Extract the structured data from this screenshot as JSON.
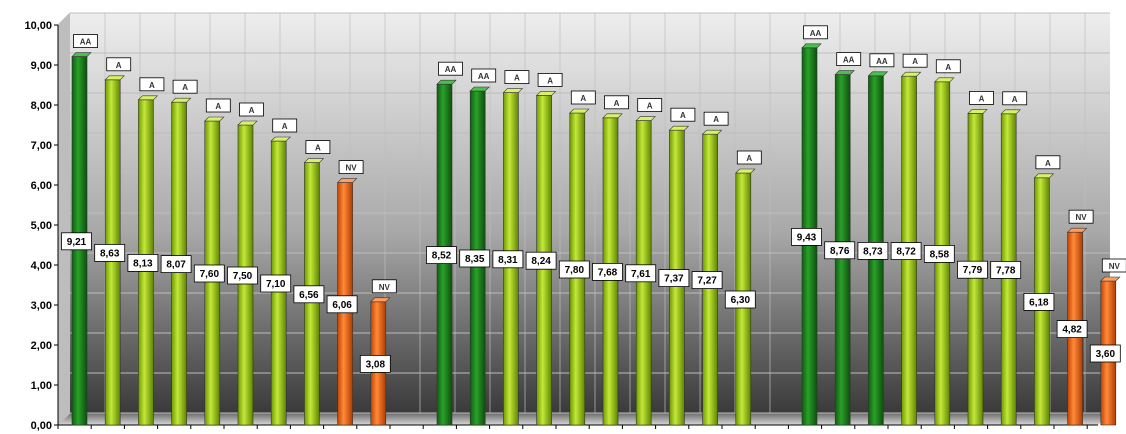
{
  "chart_data": {
    "type": "bar",
    "title": "",
    "xlabel": "",
    "ylabel": "",
    "ylim": [
      0,
      10
    ],
    "y_ticks": [
      "0,00",
      "1,00",
      "2,00",
      "3,00",
      "4,00",
      "5,00",
      "6,00",
      "7,00",
      "8,00",
      "9,00",
      "10,00"
    ],
    "grid": true,
    "legend": "none",
    "groups": [
      {
        "values": [
          "9,21",
          "8,63",
          "8,13",
          "8,07",
          "7,60",
          "7,50",
          "7,10",
          "6,56",
          "6,06",
          "3,08"
        ],
        "numeric": [
          9.21,
          8.63,
          8.13,
          8.07,
          7.6,
          7.5,
          7.1,
          6.56,
          6.06,
          3.08
        ],
        "classes": [
          "AA",
          "A",
          "A",
          "A",
          "A",
          "A",
          "A",
          "A",
          "NV",
          "NV"
        ]
      },
      {
        "values": [
          "8,52",
          "8,35",
          "8,31",
          "8,24",
          "7,80",
          "7,68",
          "7,61",
          "7,37",
          "7,27",
          "6,30"
        ],
        "numeric": [
          8.52,
          8.35,
          8.31,
          8.24,
          7.8,
          7.68,
          7.61,
          7.37,
          7.27,
          6.3
        ],
        "classes": [
          "AA",
          "AA",
          "A",
          "A",
          "A",
          "A",
          "A",
          "A",
          "A",
          "A"
        ]
      },
      {
        "values": [
          "9,43",
          "8,76",
          "8,73",
          "8,72",
          "8,58",
          "7,79",
          "7,78",
          "6,18",
          "4,82",
          "3,60"
        ],
        "numeric": [
          9.43,
          8.76,
          8.73,
          8.72,
          8.58,
          7.79,
          7.78,
          6.18,
          4.82,
          3.6
        ],
        "classes": [
          "AA",
          "AA",
          "AA",
          "A",
          "A",
          "A",
          "A",
          "A",
          "NV",
          "NV"
        ]
      }
    ],
    "colors": {
      "AA": "#1f8a1f",
      "A": "#a6d40a",
      "NV": "#ff6a10",
      "wall_top": "#e8e8e8",
      "wall_bottom": "#3a3a3a",
      "grid": "#bdbdbd"
    }
  }
}
